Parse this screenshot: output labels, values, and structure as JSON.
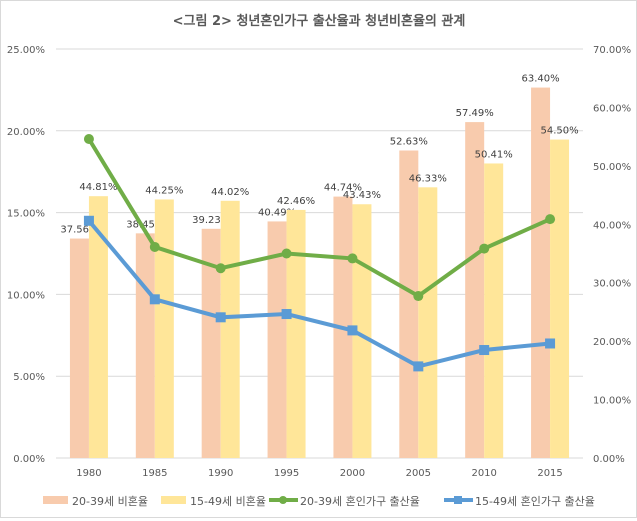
{
  "chart_data": {
    "type": "bar+line",
    "title": "<그림 2> 청년혼인가구 출산율과 청년비혼율의 관계",
    "categories": [
      "1980",
      "1985",
      "1990",
      "1995",
      "2000",
      "2005",
      "2010",
      "2015"
    ],
    "y_left": {
      "ylim": [
        0,
        25
      ],
      "ticks": [
        "0.00%",
        "5.00%",
        "10.00%",
        "15.00%",
        "20.00%",
        "25.00%"
      ]
    },
    "y_right": {
      "ylim": [
        0,
        70
      ],
      "ticks": [
        "0.00%",
        "10.00%",
        "20.00%",
        "30.00%",
        "40.00%",
        "50.00%",
        "60.00%",
        "70.00%"
      ]
    },
    "grid": true,
    "legend_position": "bottom",
    "series": [
      {
        "name": "20-39세 비혼율",
        "kind": "bar",
        "axis": "right",
        "color": "#f8cbad",
        "values": [
          37.56,
          38.45,
          39.23,
          40.49,
          44.74,
          52.63,
          57.49,
          63.4
        ],
        "labels": [
          "37.56%",
          "38.45%",
          "39.23%",
          "40.49%",
          "44.74%",
          "52.63%",
          "57.49%",
          "63.40%"
        ]
      },
      {
        "name": "15-49세 비혼율",
        "kind": "bar",
        "axis": "right",
        "color": "#ffe699",
        "values": [
          44.81,
          44.25,
          44.02,
          42.46,
          43.43,
          46.33,
          50.41,
          54.5
        ],
        "labels": [
          "44.81%",
          "44.25%",
          "44.02%",
          "42.46%",
          "43.43%",
          "46.33%",
          "50.41%",
          "54.50%"
        ]
      },
      {
        "name": "20-39세 혼인가구 출산율",
        "kind": "line",
        "axis": "left",
        "color": "#70ad47",
        "values": [
          19.5,
          12.9,
          11.6,
          12.5,
          12.2,
          9.9,
          12.8,
          14.6
        ]
      },
      {
        "name": "15-49세 혼인가구 출산율",
        "kind": "line",
        "axis": "left",
        "color": "#5b9bd5",
        "values": [
          14.5,
          9.7,
          8.6,
          8.8,
          7.8,
          5.6,
          6.6,
          7.0
        ]
      }
    ]
  }
}
